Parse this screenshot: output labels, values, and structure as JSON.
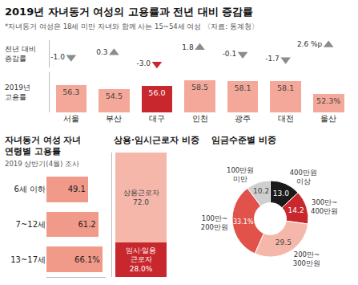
{
  "chart_data": [
    {
      "type": "bar",
      "title": "2019년 자녀동거 여성의 고용률과 전년 대비 증감률",
      "subtitle": "*자녀동거 여성은 18세 미만 자녀와 함께 사는 15~54세 여성 〈자료: 통계청〉",
      "categories": [
        "서울",
        "부산",
        "대구",
        "인천",
        "광주",
        "대전",
        "울산"
      ],
      "series": [
        {
          "name": "전년 대비 증감률",
          "type": "scatter",
          "marker": "triangle",
          "axis": "y2",
          "colors": [
            "#8c8c8c",
            "#8c8c8c",
            "#c8282d",
            "#8c8c8c",
            "#8c8c8c",
            "#8c8c8c",
            "#8c8c8c"
          ],
          "values": [
            -1.0,
            0.3,
            -3.0,
            1.8,
            -0.1,
            -1.7,
            2.6
          ],
          "value_labels": [
            "-1.0",
            "0.3",
            "-3.0",
            "1.8",
            "-0.1",
            "-1.7",
            "2.6 %p"
          ]
        },
        {
          "name": "2019년 고용률",
          "type": "bar",
          "colors": [
            "#f4a899",
            "#f4a899",
            "#c8282d",
            "#f4a899",
            "#f4a899",
            "#f4a899",
            "#f4a899"
          ],
          "values": [
            56.3,
            54.5,
            56.0,
            58.5,
            58.1,
            58.1,
            52.3
          ],
          "value_labels": [
            "56.3",
            "54.5",
            "56.0",
            "58.5",
            "58.1",
            "58.1",
            "52.3%"
          ]
        }
      ],
      "ylim": [
        44,
        62
      ],
      "y2lim": [
        -4,
        4
      ],
      "data_labels": true,
      "tick_labels": "x"
    },
    {
      "type": "bar",
      "orientation": "horizontal",
      "title": "자녀동거 여성 자녀 연령별 고용률",
      "subtitle": "2019 상반기(4월) 조사",
      "categories": [
        "6세 이하",
        "7~12세",
        "13~17세"
      ],
      "values": [
        49.1,
        61.2,
        66.1
      ],
      "value_labels": [
        "49.1",
        "61.2",
        "66.1%"
      ],
      "color": "#f19a8a",
      "xlim": [
        0,
        70
      ],
      "data_labels": true,
      "tick_labels": "y"
    },
    {
      "type": "bar",
      "stacked": true,
      "title": "상용·임시근로자 비중",
      "categories": [
        null
      ],
      "series": [
        {
          "name": "임시·일용 근로자",
          "color": "#c8282d",
          "values": [
            28.0
          ],
          "value_labels": [
            "28.0%"
          ]
        },
        {
          "name": "상용근로자",
          "color": "#f6b7ab",
          "values": [
            72.0
          ],
          "value_labels": [
            "72.0"
          ]
        }
      ],
      "ylim": [
        0,
        100
      ],
      "data_labels": true,
      "tick_labels": false
    },
    {
      "type": "pie",
      "title": "임금수준별 비중",
      "categories": [
        "400만원 이상",
        "300만~400만원",
        "200만~300만원",
        "100만~200만원",
        "100만원 미만"
      ],
      "values": [
        13.0,
        14.2,
        29.5,
        33.1,
        10.2
      ],
      "value_labels": [
        "13.0",
        "14.2",
        "29.5",
        "33.1%",
        "10.2"
      ],
      "colors": [
        "#1a1a1a",
        "#c8282d",
        "#f6b7ab",
        "#e0524a",
        "#cfcfcf"
      ],
      "data_labels": true
    }
  ]
}
